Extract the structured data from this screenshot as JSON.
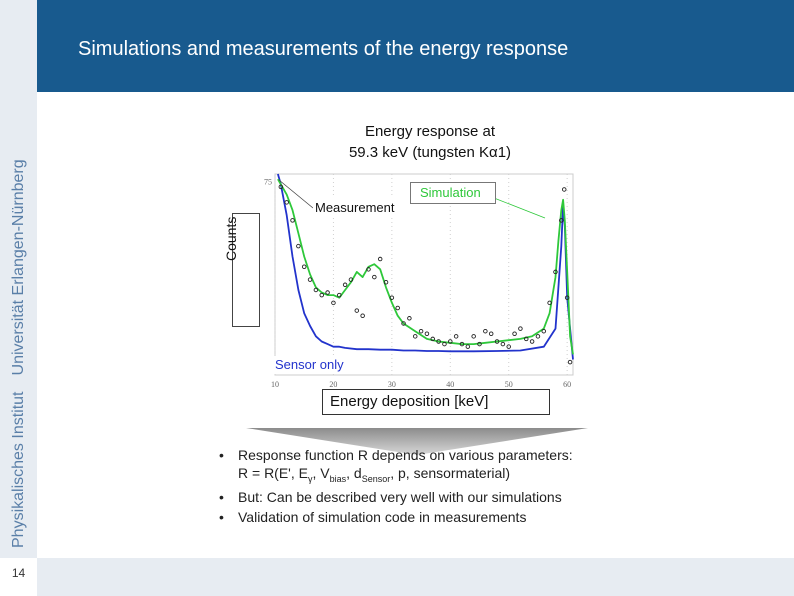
{
  "sidebar": {
    "institution_part1": "Physikalisches Institut",
    "institution_part2": "Universität Erlangen-Nürnberg",
    "page_number": "14"
  },
  "header": {
    "title": "Simulations and measurements of the energy response"
  },
  "chart_title_line1": "Energy response at",
  "chart_title_line2": "59.3 keV (tungsten Kα1)",
  "chart_data": {
    "type": "line",
    "xlabel": "Energy deposition [keV]",
    "ylabel": "Counts",
    "xlim": [
      10,
      61
    ],
    "ylim": [
      0,
      78
    ],
    "x_ticks": [
      10,
      20,
      30,
      40,
      50,
      60
    ],
    "y_ticks": [
      75
    ],
    "annotations": [
      "Measurement",
      "Simulation",
      "Sensor only"
    ],
    "series": [
      {
        "name": "Simulation",
        "color": "#2ec83a",
        "x": [
          10.5,
          11,
          12,
          13,
          14,
          15,
          16,
          17,
          18,
          19,
          20,
          21,
          22,
          23,
          24,
          25,
          26,
          27,
          28,
          29,
          30,
          31,
          32,
          34,
          36,
          38,
          40,
          42,
          44,
          46,
          48,
          50,
          52,
          54,
          56,
          57,
          58,
          58.5,
          59,
          59.3,
          59.6,
          60,
          60.5,
          61
        ],
        "y": [
          76,
          74,
          70,
          64,
          55,
          46,
          39,
          34,
          32,
          31,
          31,
          30,
          33,
          36,
          40,
          38,
          42,
          43,
          41,
          34,
          28,
          23,
          20,
          17,
          14,
          13,
          12.5,
          12,
          12,
          12.5,
          13,
          13.5,
          14,
          15,
          18,
          24,
          38,
          52,
          64,
          68,
          60,
          40,
          15,
          8
        ]
      },
      {
        "name": "Sensor only",
        "color": "#2233cc",
        "x": [
          10.5,
          11,
          12,
          13,
          14,
          15,
          16,
          17,
          18,
          19,
          20,
          21,
          22,
          24,
          26,
          28,
          30,
          32,
          34,
          36,
          38,
          40,
          44,
          48,
          52,
          56,
          58,
          59,
          59.3,
          59.6,
          60,
          61
        ],
        "y": [
          78,
          74,
          62,
          46,
          33,
          24,
          19,
          15,
          13,
          12,
          11,
          11,
          10.5,
          10,
          10,
          9.8,
          9.8,
          9.5,
          9.5,
          9.3,
          9.3,
          9.2,
          9.2,
          9.3,
          9.5,
          11,
          18,
          50,
          66,
          58,
          30,
          6
        ]
      },
      {
        "name": "Measurement",
        "color": "#222222",
        "x": [
          11,
          12,
          13,
          14,
          15,
          16,
          17,
          18,
          19,
          20,
          21,
          22,
          23,
          24,
          25,
          26,
          27,
          28,
          29,
          30,
          31,
          32,
          33,
          34,
          35,
          36,
          37,
          38,
          39,
          40,
          41,
          42,
          43,
          44,
          45,
          46,
          47,
          48,
          49,
          50,
          51,
          52,
          53,
          54,
          55,
          56,
          57,
          58,
          59,
          59.5,
          60,
          60.5
        ],
        "y": [
          73,
          67,
          60,
          50,
          42,
          37,
          33,
          31,
          32,
          28,
          31,
          35,
          37,
          25,
          23,
          41,
          38,
          45,
          36,
          30,
          26,
          20,
          22,
          15,
          17,
          16,
          14,
          13,
          12,
          13,
          15,
          12,
          11,
          15,
          12,
          17,
          16,
          13,
          12,
          11,
          16,
          18,
          14,
          13,
          15,
          17,
          28,
          40,
          60,
          72,
          30,
          5
        ]
      }
    ]
  },
  "bullets": {
    "item1_line1": "Response function R depends on various parameters:",
    "item1_line2_prefix": "R = R(E', E",
    "sub_gamma": "γ",
    "sep1": ", V",
    "sub_bias": "bias",
    "sep2": ", d",
    "sub_sensor": "Sensor",
    "item1_line2_suffix": ", p, sensormaterial)",
    "item2": "But: Can be described very well with our simulations",
    "item3": "Validation of simulation code in measurements",
    "bullet_char": "•"
  }
}
